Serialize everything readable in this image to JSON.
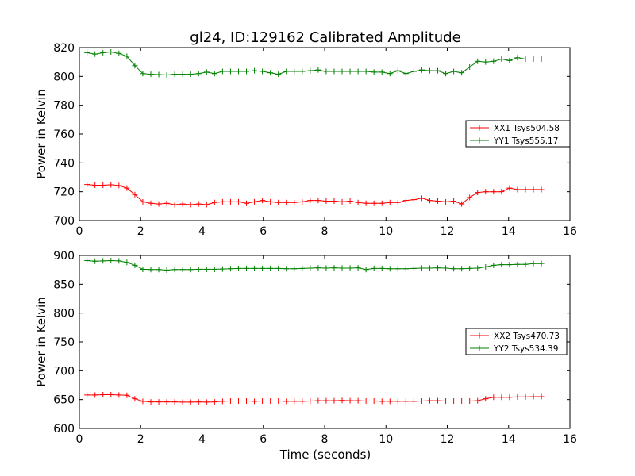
{
  "chart_data": [
    {
      "type": "line",
      "title": "gl24, ID:129162 Calibrated Amplitude",
      "xlabel": "",
      "ylabel": "Power in Kelvin",
      "xlim": [
        0,
        16
      ],
      "ylim": [
        700,
        820
      ],
      "xticks": [
        "0",
        "2",
        "4",
        "6",
        "8",
        "10",
        "12",
        "14",
        "16"
      ],
      "yticks": [
        "700",
        "720",
        "740",
        "760",
        "780",
        "800",
        "820"
      ],
      "legend_position": "center-right",
      "x": [
        0.25,
        0.51,
        0.77,
        1.03,
        1.29,
        1.55,
        1.81,
        2.07,
        2.33,
        2.59,
        2.85,
        3.11,
        3.37,
        3.63,
        3.89,
        4.15,
        4.41,
        4.67,
        4.93,
        5.19,
        5.45,
        5.71,
        5.97,
        6.23,
        6.49,
        6.75,
        7.01,
        7.27,
        7.53,
        7.79,
        8.05,
        8.31,
        8.57,
        8.83,
        9.09,
        9.35,
        9.61,
        9.87,
        10.13,
        10.39,
        10.65,
        10.91,
        11.17,
        11.43,
        11.69,
        11.95,
        12.21,
        12.47,
        12.73,
        12.99,
        13.25,
        13.51,
        13.77,
        14.03,
        14.29,
        14.55,
        14.81,
        15.07
      ],
      "series": [
        {
          "name": "XX1 Tsys504.58",
          "color": "#ff0000",
          "values": [
            725,
            724.5,
            724.5,
            724.8,
            724.3,
            722.5,
            718,
            713,
            712,
            711.5,
            712,
            711,
            711.5,
            711,
            711.5,
            711,
            712.5,
            713,
            713,
            713,
            712,
            713,
            714,
            713,
            712.5,
            712.5,
            712.5,
            713,
            714,
            714,
            713.5,
            713.5,
            713,
            713.5,
            712.5,
            712,
            712,
            712,
            712.5,
            712.5,
            714,
            714.5,
            715.5,
            714,
            713.5,
            713,
            713.5,
            711.5,
            716,
            719.5,
            720,
            720,
            720,
            722.5,
            721.5,
            721.5,
            721.5,
            721.5
          ]
        },
        {
          "name": "YY1 Tsys555.17",
          "color": "#008000",
          "values": [
            816.5,
            815.5,
            816.5,
            817,
            816,
            814,
            807.5,
            802,
            801.5,
            801.3,
            801,
            801.5,
            801.5,
            801.5,
            802,
            803,
            802,
            803.5,
            803.5,
            803.5,
            803.5,
            804,
            803.5,
            802.5,
            801.5,
            803.5,
            803.5,
            803.5,
            804,
            804.5,
            803.5,
            803.5,
            803.5,
            803.5,
            803.5,
            803.5,
            803,
            803,
            802,
            804,
            802,
            803.5,
            804.5,
            804,
            804,
            802,
            803.5,
            802.5,
            806.5,
            810.5,
            810,
            810.5,
            812,
            811,
            813,
            812,
            812,
            812
          ]
        }
      ]
    },
    {
      "type": "line",
      "title": "",
      "xlabel": "Time (seconds)",
      "ylabel": "Power in Kelvin",
      "xlim": [
        0,
        16
      ],
      "ylim": [
        600,
        900
      ],
      "xticks": [
        "0",
        "2",
        "4",
        "6",
        "8",
        "10",
        "12",
        "14",
        "16"
      ],
      "yticks": [
        "600",
        "650",
        "700",
        "750",
        "800",
        "850",
        "900"
      ],
      "legend_position": "center-right",
      "x": [
        0.25,
        0.51,
        0.77,
        1.03,
        1.29,
        1.55,
        1.81,
        2.07,
        2.33,
        2.59,
        2.85,
        3.11,
        3.37,
        3.63,
        3.89,
        4.15,
        4.41,
        4.67,
        4.93,
        5.19,
        5.45,
        5.71,
        5.97,
        6.23,
        6.49,
        6.75,
        7.01,
        7.27,
        7.53,
        7.79,
        8.05,
        8.31,
        8.57,
        8.83,
        9.09,
        9.35,
        9.61,
        9.87,
        10.13,
        10.39,
        10.65,
        10.91,
        11.17,
        11.43,
        11.69,
        11.95,
        12.21,
        12.47,
        12.73,
        12.99,
        13.25,
        13.51,
        13.77,
        14.03,
        14.29,
        14.55,
        14.81,
        15.07
      ],
      "series": [
        {
          "name": "XX2 Tsys470.73",
          "color": "#ff0000",
          "values": [
            658,
            658,
            658.5,
            658.5,
            658,
            657.5,
            651.5,
            647,
            646,
            646,
            646,
            646,
            645.5,
            645.5,
            646,
            645.5,
            646,
            647,
            647.5,
            647.5,
            647.5,
            647,
            647.5,
            647.5,
            647.5,
            647,
            647,
            647,
            647.5,
            648,
            648,
            648,
            648.5,
            648,
            648,
            647.5,
            647.5,
            647,
            647,
            647,
            647,
            647,
            647.5,
            648,
            648,
            647.5,
            647.5,
            647.5,
            647.5,
            648,
            651.5,
            654,
            654,
            654,
            654.5,
            654.5,
            655,
            655
          ]
        },
        {
          "name": "YY2 Tsys534.39",
          "color": "#008000",
          "values": [
            891,
            890,
            890.5,
            891,
            890.5,
            888,
            883,
            876,
            875.5,
            875.5,
            874.5,
            875.5,
            875.5,
            875.5,
            876,
            876,
            876,
            876.5,
            877,
            877.5,
            877.5,
            877.5,
            877.5,
            877.5,
            877.5,
            877,
            877,
            877.5,
            878,
            878.5,
            878,
            878.5,
            878,
            878,
            878.5,
            875.5,
            877.5,
            877.5,
            877,
            877,
            877,
            877.5,
            878,
            878,
            878.5,
            878,
            877,
            877,
            877.5,
            878,
            880,
            883,
            884,
            884,
            884.5,
            884.5,
            886,
            886
          ]
        }
      ]
    }
  ]
}
